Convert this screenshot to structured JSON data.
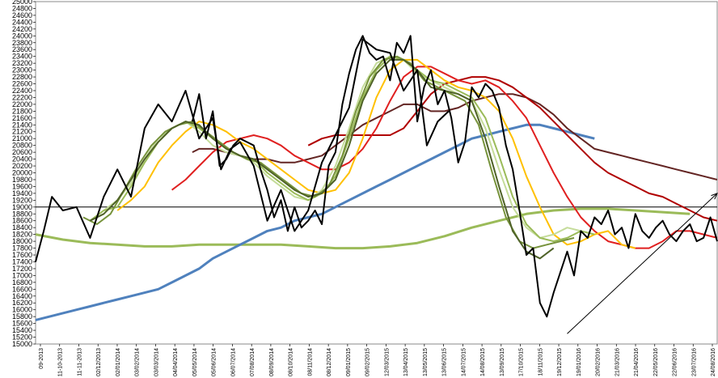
{
  "chart_data": {
    "type": "line",
    "title": "",
    "xlabel": "",
    "ylabel": "",
    "ylim": [
      15000,
      25000
    ],
    "y_ticks": [
      15000,
      15200,
      15400,
      15600,
      15800,
      16000,
      16200,
      16400,
      16600,
      16800,
      17000,
      17200,
      17400,
      17600,
      17800,
      18000,
      18200,
      18400,
      18600,
      18800,
      19000,
      19200,
      19400,
      19600,
      19800,
      20000,
      20200,
      20400,
      20600,
      20800,
      21000,
      21200,
      21400,
      21600,
      21800,
      22000,
      22200,
      22400,
      22600,
      22800,
      23000,
      23200,
      23400,
      23600,
      23800,
      24000,
      24200,
      24400,
      24600,
      24800,
      25000
    ],
    "x_ticks": [
      "09-2013",
      "11-10-2013",
      "11-11-2013",
      "02/12/2013",
      "02/01/2014",
      "03/02/2014",
      "03/03/2014",
      "04/04/2014",
      "05/05/2014",
      "05/06/2014",
      "06/07/2014",
      "07/08/2014",
      "08/09/2014",
      "08/10/2014",
      "08/11/2014",
      "08/12/2014",
      "09/01/2015",
      "09/02/2015",
      "12/03/2015",
      "13/04/2015",
      "13/05/2015",
      "13/06/2015",
      "14/07/2015",
      "14/08/2015",
      "13/09/2015",
      "17/10/2015",
      "18/11/2015",
      "19/12/2015",
      "19/01/2016",
      "20/02/2016",
      "21/03/2016",
      "21/04/2016",
      "22/05/2016",
      "22/06/2016",
      "23/07/2016",
      "24/08/2016"
    ],
    "horizontal_line": 19000,
    "grid": false,
    "colors": {
      "price": "#000000",
      "ma_light_green": "#c5dc9a",
      "ma_green": "#9bbb59",
      "ma_mid_green": "#77933c",
      "ma_olive": "#4f6228",
      "ma_yellow": "#ffc000",
      "ma_red": "#e02020",
      "ma_darkred": "#b00000",
      "ma_brown": "#632523",
      "ma_blue": "#4f81bd",
      "ma_long_green": "#9bbb59",
      "trend": "#000000"
    },
    "series": [
      {
        "key": "price",
        "x": [
          0,
          0.6,
          1.2,
          2,
          3,
          4,
          5,
          6,
          7,
          8,
          9,
          10,
          11,
          12,
          13,
          13.6,
          14.3,
          15,
          16,
          17,
          18,
          19,
          20,
          21,
          22,
          23,
          24,
          25,
          26,
          27,
          28,
          28.7,
          29.5,
          30.3
        ],
        "values": [
          17400,
          18300,
          19300,
          18900,
          19000,
          18100,
          19300,
          20100,
          19300,
          21300,
          22000,
          21500,
          22400,
          21000,
          21600,
          20100,
          20700,
          20900,
          20200,
          18600,
          19500,
          18300,
          18900,
          20300,
          21100,
          21900,
          23900,
          23600,
          23500,
          22400,
          23000,
          20800,
          21500,
          21800
        ]
      },
      {
        "key": "price2",
        "x": [
          11.5,
          12,
          12.5,
          13,
          13.5,
          14,
          14.5,
          15,
          15.5,
          16,
          16.5,
          17,
          17.5,
          18,
          18.5,
          19,
          19.5,
          20,
          20.5,
          21,
          21.5,
          22,
          22.5,
          23,
          23.5,
          24,
          24.5,
          25,
          25.5,
          26,
          26.5,
          27,
          27.5,
          28,
          28.5,
          29,
          29.5,
          30,
          30.5,
          31,
          31.5,
          32,
          32.5,
          33,
          33.5,
          34,
          34.5,
          35,
          35.5,
          36,
          36.5,
          37,
          37.5,
          38,
          38.5,
          39,
          39.5,
          40,
          40.5,
          41,
          41.5,
          42,
          42.5,
          43,
          43.5,
          44,
          44.5,
          45,
          45.5,
          46,
          46.5,
          47,
          47.5,
          48,
          48.5,
          49,
          49.5,
          50
        ],
        "values": [
          21500,
          22300,
          21000,
          21800,
          20200,
          20400,
          20800,
          21000,
          20900,
          20800,
          20100,
          19500,
          18700,
          19200,
          18300,
          19000,
          18400,
          18600,
          18900,
          18500,
          20200,
          20600,
          22000,
          22900,
          23600,
          24000,
          23500,
          23300,
          23400,
          22700,
          23800,
          23500,
          24000,
          21500,
          22500,
          23000,
          22000,
          22400,
          21600,
          20300,
          20900,
          22500,
          22200,
          22600,
          22400,
          21900,
          20800,
          20100,
          18900,
          17600,
          17800,
          16200,
          15800,
          16500,
          17100,
          17700,
          17000,
          18300,
          18100,
          18700,
          18500,
          18900,
          18200,
          18400,
          17800,
          18800,
          18300,
          18100,
          18400,
          18600,
          18200,
          18000,
          18300,
          18500,
          18000,
          18100,
          18700,
          18000
        ]
      },
      {
        "key": "ma_light_green",
        "x": [
          5,
          6,
          7,
          8,
          9,
          10,
          11,
          12,
          13,
          14,
          15,
          16,
          17,
          18,
          19,
          20,
          21,
          22,
          23,
          24,
          25,
          26,
          27,
          28,
          29,
          30,
          31,
          32,
          33,
          34,
          35,
          36,
          37,
          38,
          39,
          40
        ],
        "values": [
          18900,
          19200,
          19700,
          20400,
          21000,
          21300,
          21500,
          21200,
          20800,
          20600,
          20500,
          20300,
          19900,
          19600,
          19300,
          19200,
          19500,
          20200,
          21300,
          22500,
          23200,
          23400,
          23300,
          22900,
          22700,
          22500,
          22300,
          22100,
          21300,
          20100,
          19000,
          18400,
          18100,
          18200,
          18400,
          18300
        ]
      },
      {
        "key": "ma_green",
        "x": [
          4,
          5,
          6,
          7,
          8,
          9,
          10,
          11,
          12,
          13,
          14,
          15,
          16,
          17,
          18,
          19,
          20,
          21,
          22,
          23,
          24,
          25,
          26,
          27,
          28,
          29,
          30,
          31,
          32,
          33,
          34,
          35,
          36,
          37,
          38,
          39,
          40,
          41
        ],
        "values": [
          18600,
          18900,
          19000,
          19600,
          20300,
          20900,
          21300,
          21500,
          21300,
          21000,
          20700,
          20500,
          20400,
          20000,
          19700,
          19400,
          19200,
          19400,
          19900,
          21000,
          22200,
          23000,
          23400,
          23300,
          23000,
          22700,
          22600,
          22400,
          22200,
          21600,
          20500,
          19300,
          18500,
          18100,
          18000,
          18100,
          18300,
          18200
        ]
      },
      {
        "key": "ma_mid_green",
        "x": [
          3.5,
          4.5,
          5.5,
          6.5,
          7.5,
          8.5,
          9.5,
          10.5,
          11.5,
          12.5,
          13.5,
          14.5,
          15.5,
          16.5,
          17.5,
          18.5,
          19.5,
          20.5,
          21.5,
          22.5,
          23.5,
          24.5,
          25.5,
          26.5,
          27.5,
          28.5,
          29.5,
          30.5,
          31.5,
          32.5,
          33.5,
          34.5,
          35.5,
          36.5,
          37.5,
          38.5,
          39.5
        ],
        "values": [
          18700,
          18500,
          18800,
          19500,
          20200,
          20800,
          21200,
          21400,
          21500,
          21200,
          20900,
          20600,
          20400,
          20300,
          20000,
          19700,
          19400,
          19300,
          19600,
          20500,
          21800,
          22800,
          23300,
          23400,
          23200,
          22700,
          22500,
          22300,
          22100,
          21400,
          20000,
          18700,
          18000,
          17800,
          17900,
          18000,
          18100
        ]
      },
      {
        "key": "ma_olive",
        "x": [
          4,
          5,
          6,
          7,
          8,
          9,
          10,
          11,
          12,
          13,
          14,
          15,
          16,
          17,
          18,
          19,
          20,
          21,
          22,
          23,
          24,
          25,
          26,
          27,
          28,
          29,
          30,
          31,
          32,
          33,
          34,
          35,
          36,
          37,
          38
        ],
        "values": [
          18600,
          18800,
          19200,
          19800,
          20400,
          20900,
          21300,
          21500,
          21400,
          21000,
          20700,
          20500,
          20400,
          20100,
          19800,
          19500,
          19300,
          19400,
          19800,
          20800,
          22100,
          22900,
          23300,
          23300,
          23000,
          22500,
          22400,
          22300,
          22100,
          21000,
          19600,
          18300,
          17700,
          17500,
          17800
        ]
      },
      {
        "key": "ma_yellow",
        "x": [
          6,
          7,
          8,
          9,
          10,
          11,
          12,
          13,
          14,
          15,
          16,
          17,
          18,
          19,
          20,
          21,
          22,
          23,
          24,
          25,
          26,
          27,
          28,
          29,
          30,
          31,
          32,
          33,
          34,
          35,
          36,
          37,
          38,
          39,
          40,
          41,
          42,
          43,
          44
        ],
        "values": [
          18900,
          19200,
          19600,
          20300,
          20800,
          21200,
          21500,
          21400,
          21200,
          20900,
          20700,
          20400,
          20100,
          19800,
          19500,
          19400,
          19500,
          20000,
          21000,
          22200,
          23000,
          23300,
          23300,
          23000,
          22700,
          22500,
          22400,
          22200,
          21800,
          21000,
          19900,
          19000,
          18200,
          17900,
          18000,
          18200,
          18300,
          17900,
          17800
        ]
      },
      {
        "key": "ma_red",
        "x": [
          10,
          11,
          12,
          13,
          14,
          15,
          16,
          17,
          18,
          19,
          20,
          21,
          22,
          23,
          24,
          25,
          26,
          27,
          28,
          29,
          30,
          31,
          32,
          33,
          34,
          35,
          36,
          37,
          38,
          39,
          40,
          41,
          42,
          43,
          44,
          45,
          46,
          47,
          48,
          49,
          50
        ],
        "values": [
          19500,
          19800,
          20200,
          20600,
          20900,
          21000,
          21100,
          21000,
          20800,
          20500,
          20300,
          20100,
          20100,
          20300,
          20700,
          21300,
          22100,
          22800,
          23100,
          23100,
          22900,
          22700,
          22600,
          22700,
          22500,
          22100,
          21600,
          20800,
          20000,
          19300,
          18700,
          18300,
          18000,
          17900,
          17800,
          17800,
          18000,
          18300,
          18300,
          18200,
          18100
        ]
      },
      {
        "key": "ma_darkred",
        "x": [
          20,
          21,
          22,
          23,
          24,
          25,
          26,
          27,
          28,
          29,
          30,
          31,
          32,
          33,
          34,
          35,
          36,
          37,
          38,
          39,
          40,
          41,
          42,
          43,
          44,
          45,
          46,
          47,
          48,
          49,
          50
        ],
        "values": [
          20800,
          21000,
          21100,
          21100,
          21100,
          21100,
          21100,
          21300,
          21800,
          22300,
          22600,
          22700,
          22800,
          22800,
          22700,
          22500,
          22200,
          21900,
          21500,
          21100,
          20700,
          20300,
          20000,
          19800,
          19600,
          19400,
          19300,
          19100,
          18900,
          18700,
          18600
        ]
      },
      {
        "key": "ma_brown",
        "x": [
          11.5,
          12,
          13,
          14,
          15,
          16,
          17,
          18,
          19,
          20,
          21,
          22,
          23,
          24,
          25,
          26,
          27,
          28,
          29,
          30,
          31,
          32,
          33,
          34,
          35,
          36,
          37,
          38,
          39,
          40,
          41,
          42,
          43,
          44,
          45,
          46,
          47,
          48,
          49,
          50
        ],
        "values": [
          20600,
          20700,
          20700,
          20600,
          20500,
          20400,
          20400,
          20300,
          20300,
          20400,
          20500,
          20800,
          21100,
          21400,
          21600,
          21800,
          22000,
          22000,
          21800,
          21800,
          21900,
          22100,
          22200,
          22300,
          22300,
          22200,
          22000,
          21700,
          21300,
          21000,
          20700,
          20600,
          20500,
          20400,
          20300,
          20200,
          20100,
          20000,
          19900,
          19800
        ]
      },
      {
        "key": "ma_blue",
        "x": [
          0,
          1,
          2,
          3,
          4,
          5,
          6,
          7,
          8,
          9,
          10,
          11,
          12,
          13,
          14,
          15,
          16,
          17,
          18,
          19,
          20,
          21,
          22,
          23,
          24,
          25,
          26,
          27,
          28,
          29,
          30,
          31,
          32,
          33,
          34,
          35,
          36,
          37,
          38,
          39,
          40,
          41
        ],
        "values": [
          15700,
          15800,
          15900,
          16000,
          16100,
          16200,
          16300,
          16400,
          16500,
          16600,
          16800,
          17000,
          17200,
          17500,
          17700,
          17900,
          18100,
          18300,
          18400,
          18600,
          18700,
          18800,
          19000,
          19200,
          19400,
          19600,
          19800,
          20000,
          20200,
          20400,
          20600,
          20800,
          21000,
          21100,
          21200,
          21300,
          21400,
          21400,
          21300,
          21200,
          21100,
          21000
        ]
      },
      {
        "key": "ma_long_green",
        "x": [
          0,
          2,
          4,
          6,
          8,
          10,
          12,
          14,
          16,
          18,
          20,
          22,
          24,
          26,
          28,
          30,
          32,
          34,
          36,
          38,
          40,
          42,
          44,
          46,
          48
        ],
        "values": [
          18200,
          18050,
          17950,
          17900,
          17850,
          17850,
          17900,
          17900,
          17900,
          17900,
          17850,
          17800,
          17800,
          17850,
          17950,
          18150,
          18400,
          18600,
          18800,
          18900,
          18950,
          18950,
          18900,
          18850,
          18800
        ]
      },
      {
        "key": "trend",
        "x": [
          39,
          50
        ],
        "values": [
          15300,
          19400
        ]
      }
    ]
  }
}
